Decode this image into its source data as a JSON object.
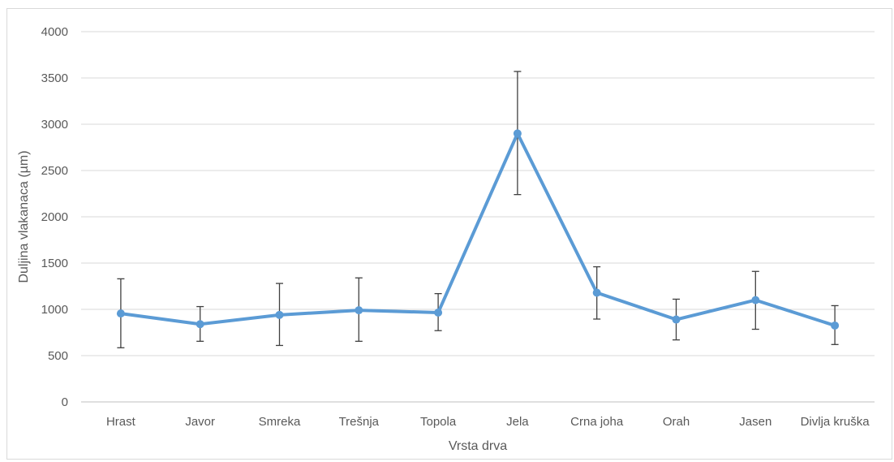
{
  "chart_data": {
    "type": "line",
    "title": "",
    "xlabel": "Vrsta drva",
    "ylabel": "Duljina vlakanaca (µm)",
    "ylim": [
      0,
      4000
    ],
    "yticks": [
      0,
      500,
      1000,
      1500,
      2000,
      2500,
      3000,
      3500,
      4000
    ],
    "categories": [
      "Hrast",
      "Javor",
      "Smreka",
      "Trešnja",
      "Topola",
      "Jela",
      "Crna joha",
      "Orah",
      "Jasen",
      "Divlja kruška"
    ],
    "series": [
      {
        "values": [
          955,
          840,
          940,
          990,
          965,
          2900,
          1180,
          890,
          1100,
          825
        ],
        "error_low": [
          585,
          655,
          610,
          655,
          770,
          2240,
          895,
          670,
          785,
          620
        ],
        "error_high": [
          1330,
          1030,
          1280,
          1340,
          1170,
          3570,
          1460,
          1110,
          1410,
          1040
        ],
        "color": "#5b9bd5"
      }
    ],
    "grid": true,
    "legend": "none"
  }
}
